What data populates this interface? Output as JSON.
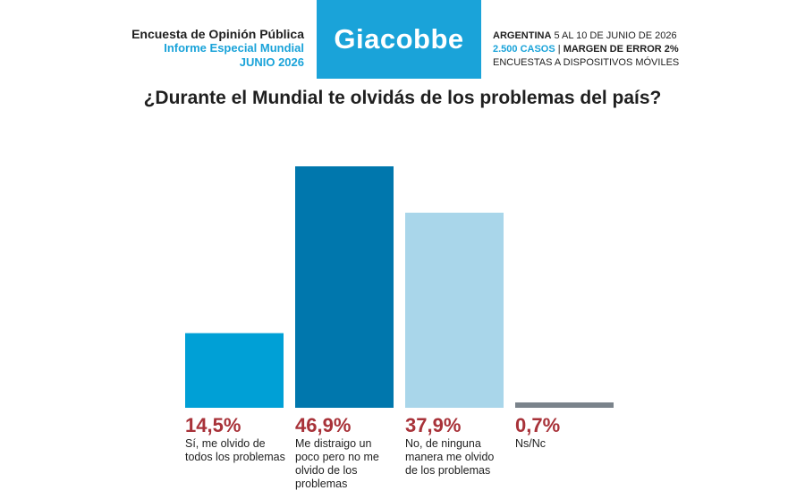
{
  "header": {
    "line1": "Encuesta de Opinión Pública",
    "line2": "Informe Especial Mundial",
    "line3": "JUNIO 2026",
    "brand": "Giacobbe",
    "country": "ARGENTINA",
    "dates": "5 AL 10 DE JUNIO DE 2026",
    "cases": "2.500 CASOS",
    "separator": "|",
    "margin": "MARGEN DE ERROR 2%",
    "method": "ENCUESTAS A DISPOSITIVOS MÓVILES",
    "brand_color": "#1aa3d9"
  },
  "chart_data": {
    "type": "bar",
    "title": "¿Durante el Mundial te olvidás de los problemas del país?",
    "categories": [
      "Sí, me olvido de todos los problemas",
      "Me distraigo un poco pero no me olvido de los problemas",
      "No, de ninguna manera me olvido de los problemas",
      "Ns/Nc"
    ],
    "values": [
      14.5,
      46.9,
      37.9,
      0.7
    ],
    "value_labels": [
      "14,5%",
      "46,9%",
      "37,9%",
      "0,7%"
    ],
    "colors": [
      "#00a0d6",
      "#0077ad",
      "#a9d6ea",
      "#7a838b"
    ],
    "value_label_color": "#a83239",
    "ylim": [
      0,
      46.9
    ],
    "grid": false,
    "legend": "none"
  }
}
